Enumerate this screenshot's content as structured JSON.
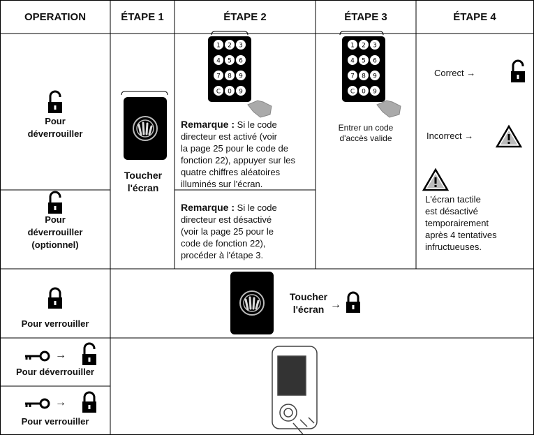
{
  "header": [
    "OPERATION",
    "ÉTAPE 1",
    "ÉTAPE 2",
    "ÉTAPE 3",
    "ÉTAPE 4"
  ],
  "operations": {
    "unlock": [
      "Pour",
      "déverrouiller"
    ],
    "unlock_optional": [
      "Pour",
      "déverrouiller",
      "(optionnel)"
    ],
    "lock": "Pour verrouiller",
    "key_unlock": "Pour déverrouiller",
    "key_lock": "Pour verrouiller"
  },
  "arrow": "→",
  "step1": [
    "Toucher",
    "l'écran"
  ],
  "keypad_keys": [
    "1",
    "2",
    "3",
    "4",
    "5",
    "6",
    "7",
    "8",
    "9",
    "C",
    "0",
    "9"
  ],
  "step2": {
    "note_label": "Remarque :",
    "note1_lines": [
      "Si le code",
      "directeur est activé (voir",
      "la page 25 pour le code de",
      "fonction 22), appuyer sur les",
      "quatre chiffres aléatoires",
      "illuminés sur l'écran."
    ],
    "note2_lines": [
      "Si le code",
      "directeur est désactivé",
      "(voir la page 25 pour le",
      "code de fonction 22),",
      "procéder à l'étape 3."
    ]
  },
  "step3": [
    "Entrer un code",
    "d'accès valide"
  ],
  "step4": {
    "correct": "Correct",
    "incorrect": "Incorrect",
    "warning": [
      "L'écran tactile",
      "est désactivé",
      "temporairement",
      "après 4 tentatives",
      "infructueuses."
    ]
  },
  "lock_row": [
    "Toucher",
    "l'écran"
  ]
}
